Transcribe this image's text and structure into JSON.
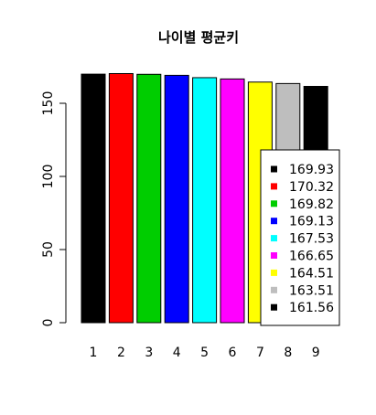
{
  "chart_data": {
    "type": "bar",
    "title": "나이별 평균키",
    "xlabel": "",
    "ylabel": "",
    "categories": [
      "1",
      "2",
      "3",
      "4",
      "5",
      "6",
      "7",
      "8",
      "9"
    ],
    "values": [
      169.93,
      170.32,
      169.82,
      169.13,
      167.53,
      166.65,
      164.51,
      163.51,
      161.56
    ],
    "colors": [
      "#000000",
      "#ff0000",
      "#00cd00",
      "#0000ff",
      "#00ffff",
      "#ff00ff",
      "#ffff00",
      "#bebebe",
      "#000000"
    ],
    "ylim": [
      0,
      175
    ],
    "yticks": [
      0,
      50,
      100,
      150
    ],
    "legend": {
      "position": "right",
      "entries": [
        "169.93",
        "170.32",
        "169.82",
        "169.13",
        "167.53",
        "166.65",
        "164.51",
        "163.51",
        "161.56"
      ]
    }
  }
}
